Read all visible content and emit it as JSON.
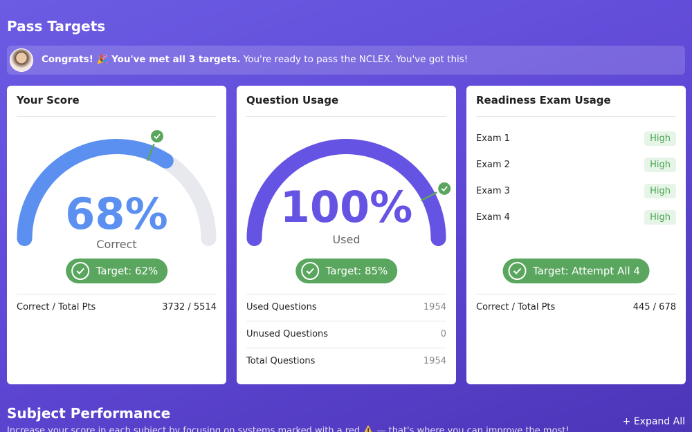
{
  "header": {
    "title": "Pass Targets"
  },
  "banner": {
    "bold": "Congrats! 🎉 You've met all 3 targets.",
    "text": "You're ready to pass the NCLEX. You've got this!"
  },
  "cards": [
    {
      "title": "Your Score",
      "gauge": {
        "range": [
          0,
          100
        ],
        "value": 68,
        "value_label": "68%",
        "caption": "Correct",
        "color": "#5b8ff0",
        "target": 62,
        "target_label": "Target: 62%"
      },
      "rows": [
        [
          "Correct / Total Pts",
          "3732 / 5514"
        ]
      ]
    },
    {
      "title": "Question Usage",
      "gauge": {
        "range": [
          0,
          100
        ],
        "value": 100,
        "value_label": "100%",
        "caption": "Used",
        "color": "#6553e3",
        "target": 85,
        "target_label": "Target: 85%"
      },
      "rows": [
        [
          "Used Questions",
          1954
        ],
        [
          "Unused Questions",
          0
        ],
        [
          "Total Questions",
          1954
        ]
      ]
    },
    {
      "title": "Readiness Exam Usage",
      "exams": [
        [
          "Exam 1",
          "High"
        ],
        [
          "Exam 2",
          "High"
        ],
        [
          "Exam 3",
          "High"
        ],
        [
          "Exam 4",
          "High"
        ]
      ],
      "target_label": "Target: Attempt All 4",
      "rows": [
        [
          "Correct / Total Pts",
          "445 / 678"
        ]
      ]
    }
  ],
  "section": {
    "title": "Subject Performance",
    "action": "Expand All",
    "subtitle": "Increase your score in each subject by focusing on systems marked with a red ⚠️ — that's where you can improve the most!"
  }
}
